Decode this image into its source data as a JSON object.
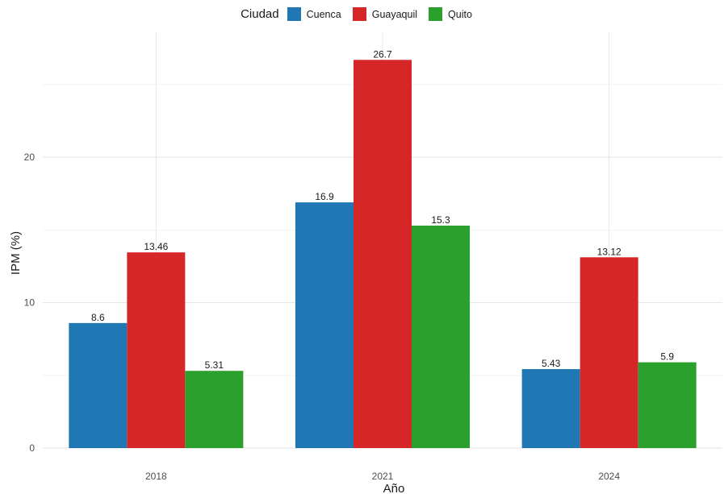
{
  "chart_data": {
    "type": "bar",
    "categories": [
      "2018",
      "2021",
      "2024"
    ],
    "series": [
      {
        "name": "Cuenca",
        "color": "#1f77b4",
        "values": [
          8.6,
          16.9,
          5.43
        ],
        "labels": [
          "8.6",
          "16.9",
          "5.43"
        ]
      },
      {
        "name": "Guayaquil",
        "color": "#d62728",
        "values": [
          13.46,
          26.7,
          13.12
        ],
        "labels": [
          "13.46",
          "26.7",
          "13.12"
        ]
      },
      {
        "name": "Quito",
        "color": "#2ca02c",
        "values": [
          5.31,
          15.3,
          5.9
        ],
        "labels": [
          "5.31",
          "15.3",
          "5.9"
        ]
      }
    ],
    "xlabel": "Año",
    "ylabel": "IPM (%)",
    "yticks": [
      0,
      10,
      20
    ],
    "ylim": [
      0,
      28.6
    ],
    "grid": true,
    "legend": {
      "title": "Ciudad",
      "position": "top"
    }
  }
}
